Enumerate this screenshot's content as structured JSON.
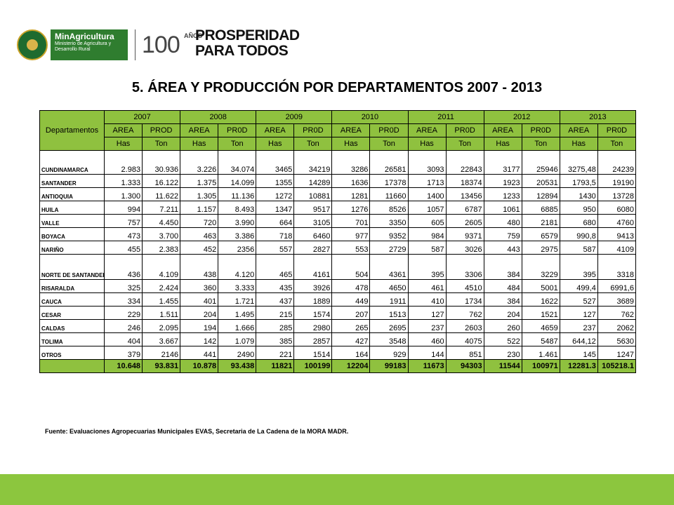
{
  "header": {
    "ministry_title": "MinAgricultura",
    "ministry_subtitle": "Ministerio de Agricultura y Desarrollo Rural",
    "years_number": "100",
    "years_label": "AÑOS",
    "slogan_line1": "PROSPERIDAD",
    "slogan_line2": "PARA TODOS",
    "seal_icon": "colombia-coat-of-arms-icon"
  },
  "title": "5. ÁREA Y PRODUCCIÓN POR DEPARTAMENTOS 2007 - 2013",
  "table": {
    "dept_header": "Departamentos",
    "years": [
      "2007",
      "2008",
      "2009",
      "2010",
      "2011",
      "2012",
      "2013"
    ],
    "subheaders": [
      "AREA",
      "PROD",
      "AREA",
      "PR0D",
      "AREA",
      "PR0D",
      "AREA",
      "PR0D",
      "AREA",
      "PR0D",
      "AREA",
      "PR0D",
      "AREA",
      "PR0D"
    ],
    "units": [
      "Has",
      "Ton",
      "Has",
      "Ton",
      "Has",
      "Ton",
      "Has",
      "Ton",
      "Has",
      "Ton",
      "Has",
      "Ton",
      "Has",
      "Ton"
    ],
    "rows": [
      {
        "name": "CUNDINAMARCA",
        "values": [
          "2.983",
          "30.936",
          "3.226",
          "34.074",
          "3465",
          "34219",
          "3286",
          "26581",
          "3093",
          "22843",
          "3177",
          "25946",
          "3275,48",
          "24239"
        ]
      },
      {
        "name": "SANTANDER",
        "values": [
          "1.333",
          "16.122",
          "1.375",
          "14.099",
          "1355",
          "14289",
          "1636",
          "17378",
          "1713",
          "18374",
          "1923",
          "20531",
          "1793,5",
          "19190"
        ]
      },
      {
        "name": "ANTIOQUIA",
        "values": [
          "1.300",
          "11.622",
          "1.305",
          "11.136",
          "1272",
          "10881",
          "1281",
          "11660",
          "1400",
          "13456",
          "1233",
          "12894",
          "1430",
          "13728"
        ]
      },
      {
        "name": "HUILA",
        "values": [
          "994",
          "7.211",
          "1.157",
          "8.493",
          "1347",
          "9517",
          "1276",
          "8526",
          "1057",
          "6787",
          "1061",
          "6885",
          "950",
          "6080"
        ]
      },
      {
        "name": "VALLE",
        "values": [
          "757",
          "4.450",
          "720",
          "3.990",
          "664",
          "3105",
          "701",
          "3350",
          "605",
          "2605",
          "480",
          "2181",
          "680",
          "4760"
        ]
      },
      {
        "name": "BOYACA",
        "values": [
          "473",
          "3.700",
          "463",
          "3.386",
          "718",
          "6460",
          "977",
          "9352",
          "984",
          "9371",
          "759",
          "6579",
          "990,8",
          "9413"
        ]
      },
      {
        "name": "NARIÑO",
        "values": [
          "455",
          "2.383",
          "452",
          "2356",
          "557",
          "2827",
          "553",
          "2729",
          "587",
          "3026",
          "443",
          "2975",
          "587",
          "4109"
        ]
      },
      {
        "name": "NORTE DE SANTANDER",
        "values": [
          "436",
          "4.109",
          "438",
          "4.120",
          "465",
          "4161",
          "504",
          "4361",
          "395",
          "3306",
          "384",
          "3229",
          "395",
          "3318"
        ]
      },
      {
        "name": "RISARALDA",
        "values": [
          "325",
          "2.424",
          "360",
          "3.333",
          "435",
          "3926",
          "478",
          "4650",
          "461",
          "4510",
          "484",
          "5001",
          "499,4",
          "6991,6"
        ]
      },
      {
        "name": "CAUCA",
        "values": [
          "334",
          "1.455",
          "401",
          "1.721",
          "437",
          "1889",
          "449",
          "1911",
          "410",
          "1734",
          "384",
          "1622",
          "527",
          "3689"
        ]
      },
      {
        "name": "CESAR",
        "values": [
          "229",
          "1.511",
          "204",
          "1.495",
          "215",
          "1574",
          "207",
          "1513",
          "127",
          "762",
          "204",
          "1521",
          "127",
          "762"
        ]
      },
      {
        "name": "CALDAS",
        "values": [
          "246",
          "2.095",
          "194",
          "1.666",
          "285",
          "2980",
          "265",
          "2695",
          "237",
          "2603",
          "260",
          "4659",
          "237",
          "2062"
        ]
      },
      {
        "name": "TOLIMA",
        "values": [
          "404",
          "3.667",
          "142",
          "1.079",
          "385",
          "2857",
          "427",
          "3548",
          "460",
          "4075",
          "522",
          "5487",
          "644,12",
          "5630"
        ]
      },
      {
        "name": "OTROS",
        "values": [
          "379",
          "2146",
          "441",
          "2490",
          "221",
          "1514",
          "164",
          "929",
          "144",
          "851",
          "230",
          "1.461",
          "145",
          "1247"
        ]
      }
    ],
    "totals": [
      "10.648",
      "93.831",
      "10.878",
      "93.438",
      "11821",
      "100199",
      "12204",
      "99183",
      "11673",
      "94303",
      "11544",
      "100971",
      "12281.3",
      "105218.1"
    ]
  },
  "source": "Fuente: Evaluaciones  Agropecuarias Municipales  EVAS, Secretaria de La Cadena de la MORA MADR."
}
